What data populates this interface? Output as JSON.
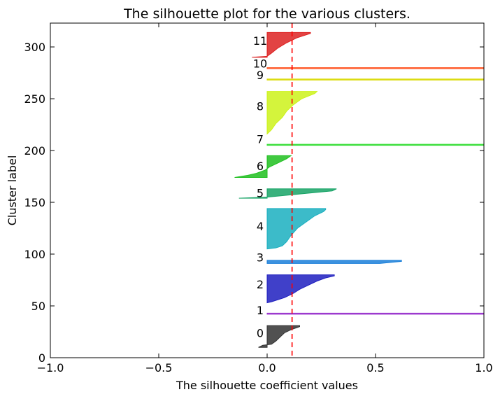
{
  "chart_data": {
    "type": "area",
    "title": "The silhouette plot for the various clusters.",
    "xlabel": "The silhouette coefficient values",
    "ylabel": "Cluster label",
    "xlim": [
      -1.0,
      1.0
    ],
    "ylim": [
      0,
      323
    ],
    "xticks": [
      -1.0,
      -0.5,
      0.0,
      0.5,
      1.0
    ],
    "xtick_labels": [
      "−1.0",
      "−0.5",
      "0.0",
      "0.5",
      "1.0"
    ],
    "yticks": [
      0,
      50,
      100,
      150,
      200,
      250,
      300
    ],
    "ytick_labels": [
      "0",
      "50",
      "100",
      "150",
      "200",
      "250",
      "300"
    ],
    "grid": false,
    "reference_line": {
      "x": 0.115,
      "color": "#ff0000",
      "style": "dashed",
      "label": ""
    },
    "clusters": [
      {
        "label": "0",
        "label_y": 24,
        "color": "#333333",
        "profile": [
          [
            10,
            -0.04
          ],
          [
            12,
            -0.02
          ],
          [
            13,
            0.02
          ],
          [
            16,
            0.04
          ],
          [
            20,
            0.06
          ],
          [
            24,
            0.08
          ],
          [
            27,
            0.11
          ],
          [
            30,
            0.15
          ],
          [
            31,
            0.15
          ]
        ]
      },
      {
        "label": "1",
        "label_y": 46,
        "color": "#9933cc",
        "profile": [
          [
            42,
            1.0
          ],
          [
            43,
            1.0
          ]
        ]
      },
      {
        "label": "2",
        "label_y": 71,
        "color": "#1f1fbf",
        "profile": [
          [
            53,
            0.0
          ],
          [
            54,
            0.02
          ],
          [
            56,
            0.05
          ],
          [
            58,
            0.08
          ],
          [
            62,
            0.12
          ],
          [
            66,
            0.15
          ],
          [
            70,
            0.19
          ],
          [
            74,
            0.23
          ],
          [
            77,
            0.27
          ],
          [
            79,
            0.31
          ],
          [
            80,
            0.31
          ]
        ]
      },
      {
        "label": "3",
        "label_y": 97,
        "color": "#1a7fd9",
        "profile": [
          [
            91,
            0.52
          ],
          [
            93,
            0.62
          ],
          [
            94,
            0.62
          ]
        ]
      },
      {
        "label": "4",
        "label_y": 127,
        "color": "#1aafbf",
        "profile": [
          [
            105,
            0.0
          ],
          [
            106,
            0.04
          ],
          [
            108,
            0.07
          ],
          [
            112,
            0.09
          ],
          [
            118,
            0.11
          ],
          [
            125,
            0.14
          ],
          [
            131,
            0.18
          ],
          [
            137,
            0.22
          ],
          [
            141,
            0.26
          ],
          [
            143,
            0.27
          ],
          [
            144,
            0.27
          ]
        ]
      },
      {
        "label": "5",
        "label_y": 159,
        "color": "#17a366",
        "profile": [
          [
            154,
            -0.13
          ],
          [
            155,
            0.0
          ],
          [
            155,
            0.0
          ],
          [
            157,
            0.1
          ],
          [
            161,
            0.3
          ],
          [
            163,
            0.32
          ]
        ]
      },
      {
        "label": "6",
        "label_y": 185,
        "color": "#1fbf1f",
        "profile": [
          [
            174,
            -0.15
          ],
          [
            176,
            -0.09
          ],
          [
            178,
            -0.05
          ],
          [
            181,
            -0.01
          ],
          [
            184,
            0.01
          ],
          [
            188,
            0.05
          ],
          [
            192,
            0.09
          ],
          [
            195,
            0.11
          ]
        ]
      },
      {
        "label": "7",
        "label_y": 211,
        "color": "#33dd33",
        "profile": [
          [
            205,
            1.0
          ],
          [
            206,
            1.0
          ]
        ]
      },
      {
        "label": "8",
        "label_y": 243,
        "color": "#ccf21a",
        "profile": [
          [
            216,
            0.0
          ],
          [
            220,
            0.02
          ],
          [
            226,
            0.04
          ],
          [
            232,
            0.07
          ],
          [
            238,
            0.09
          ],
          [
            244,
            0.12
          ],
          [
            250,
            0.16
          ],
          [
            255,
            0.22
          ],
          [
            257,
            0.23
          ]
        ]
      },
      {
        "label": "9",
        "label_y": 273,
        "color": "#d9d900",
        "profile": [
          [
            268,
            1.0
          ],
          [
            269,
            1.0
          ]
        ]
      },
      {
        "label": "10",
        "label_y": 284,
        "color": "#ff5522",
        "profile": [
          [
            279,
            1.0
          ],
          [
            280,
            1.0
          ]
        ]
      },
      {
        "label": "11",
        "label_y": 306,
        "color": "#dd2222",
        "profile": [
          [
            290,
            -0.07
          ],
          [
            291,
            0.0
          ],
          [
            291,
            0.0
          ],
          [
            294,
            0.02
          ],
          [
            299,
            0.05
          ],
          [
            304,
            0.09
          ],
          [
            309,
            0.14
          ],
          [
            313,
            0.2
          ],
          [
            314,
            0.2
          ]
        ]
      }
    ]
  }
}
